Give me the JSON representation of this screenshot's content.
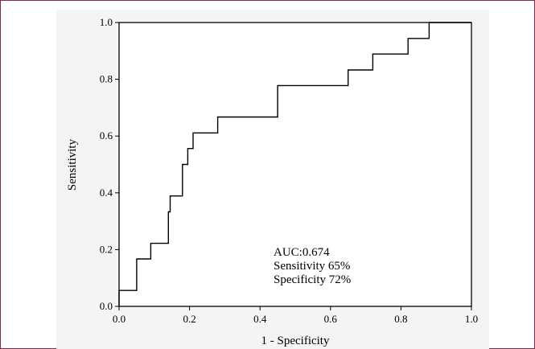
{
  "chart_data": {
    "type": "line",
    "title": "",
    "xlabel": "1 - Specificity",
    "ylabel": "Sensitivity",
    "xlim": [
      0,
      1
    ],
    "ylim": [
      0,
      1
    ],
    "x_ticks": [
      "0.0",
      "0.2",
      "0.4",
      "0.6",
      "0.8",
      "1.0"
    ],
    "y_ticks": [
      "0.0",
      "0.2",
      "0.4",
      "0.6",
      "0.8",
      "1.0"
    ],
    "grid": false,
    "series": [
      {
        "name": "",
        "points": [
          [
            0.0,
            0.0
          ],
          [
            0.0,
            0.056
          ],
          [
            0.05,
            0.056
          ],
          [
            0.05,
            0.167
          ],
          [
            0.09,
            0.167
          ],
          [
            0.09,
            0.222
          ],
          [
            0.14,
            0.222
          ],
          [
            0.14,
            0.333
          ],
          [
            0.145,
            0.333
          ],
          [
            0.145,
            0.389
          ],
          [
            0.18,
            0.389
          ],
          [
            0.18,
            0.5
          ],
          [
            0.195,
            0.5
          ],
          [
            0.195,
            0.556
          ],
          [
            0.21,
            0.556
          ],
          [
            0.21,
            0.611
          ],
          [
            0.28,
            0.611
          ],
          [
            0.28,
            0.667
          ],
          [
            0.45,
            0.667
          ],
          [
            0.45,
            0.778
          ],
          [
            0.65,
            0.778
          ],
          [
            0.65,
            0.833
          ],
          [
            0.72,
            0.833
          ],
          [
            0.72,
            0.889
          ],
          [
            0.82,
            0.889
          ],
          [
            0.82,
            0.944
          ],
          [
            0.88,
            0.944
          ],
          [
            0.88,
            1.0
          ],
          [
            1.0,
            1.0
          ]
        ]
      }
    ],
    "annotations": [
      "AUC:0.674",
      "Sensitivity 65%",
      "Specificity 72%"
    ],
    "colors": {
      "line": "#000000",
      "frame_border": "#8a2a4a",
      "plot_background": "#f4f4f4"
    }
  }
}
